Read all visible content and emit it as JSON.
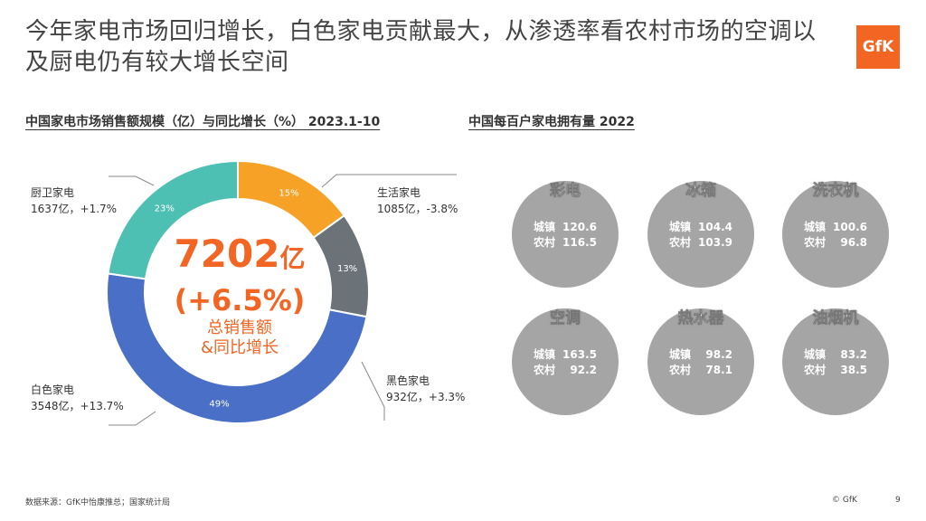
{
  "slide": {
    "title": "今年家电市场回归增长，白色家电贡献最大，从渗透率看农村市场的空调以及厨电仍有较大增长空间",
    "logo_text": "GfK",
    "left_title": "中国家电市场销售额规模（亿）与同比增长（%） 2023.1-10",
    "right_title": "中国每百户家电拥有量 2022",
    "center": {
      "value": "7202",
      "unit": "亿",
      "growth": "(+6.5%)",
      "line1": "总销售额",
      "line2": "&同比增长"
    },
    "footer_source": "数据来源：GfK中怡康推总；国家统计局",
    "footer_copyright": "© GfK",
    "page_number": "9"
  },
  "chart_data": [
    {
      "type": "pie",
      "categories": [
        "生活家电",
        "黑色家电",
        "白色家电",
        "厨卫家电"
      ],
      "values": [
        1085,
        932,
        3548,
        1637
      ],
      "percent_labels": [
        "15%",
        "13%",
        "49%",
        "23%"
      ],
      "growth_labels": [
        "-3.8%",
        "+3.3%",
        "+13.7%",
        "+1.7%"
      ],
      "callouts": [
        {
          "name": "生活家电",
          "detail": "1085亿，-3.8%"
        },
        {
          "name": "黑色家电",
          "detail": "932亿，+3.3%"
        },
        {
          "name": "白色家电",
          "detail": "3548亿，+13.7%"
        },
        {
          "name": "厨卫家电",
          "detail": "1637亿，+1.7%"
        }
      ],
      "colors": [
        "#f5a227",
        "#6b7378",
        "#4a6fc6",
        "#4dbfb3"
      ],
      "title": "中国家电市场销售额规模（亿）与同比增长（%） 2023.1-10"
    },
    {
      "type": "table",
      "title": "中国每百户家电拥有量 2022",
      "row_labels": [
        "城镇",
        "农村"
      ],
      "items": [
        {
          "name": "彩电",
          "values": [
            "120.6",
            "116.5"
          ]
        },
        {
          "name": "冰箱",
          "values": [
            "104.4",
            "103.9"
          ]
        },
        {
          "name": "洗衣机",
          "values": [
            "100.6",
            "96.8"
          ]
        },
        {
          "name": "空调",
          "values": [
            "163.5",
            "92.2"
          ]
        },
        {
          "name": "热水器",
          "values": [
            "98.2",
            "78.1"
          ]
        },
        {
          "name": "油烟机",
          "values": [
            "83.2",
            "38.5"
          ]
        }
      ]
    }
  ]
}
